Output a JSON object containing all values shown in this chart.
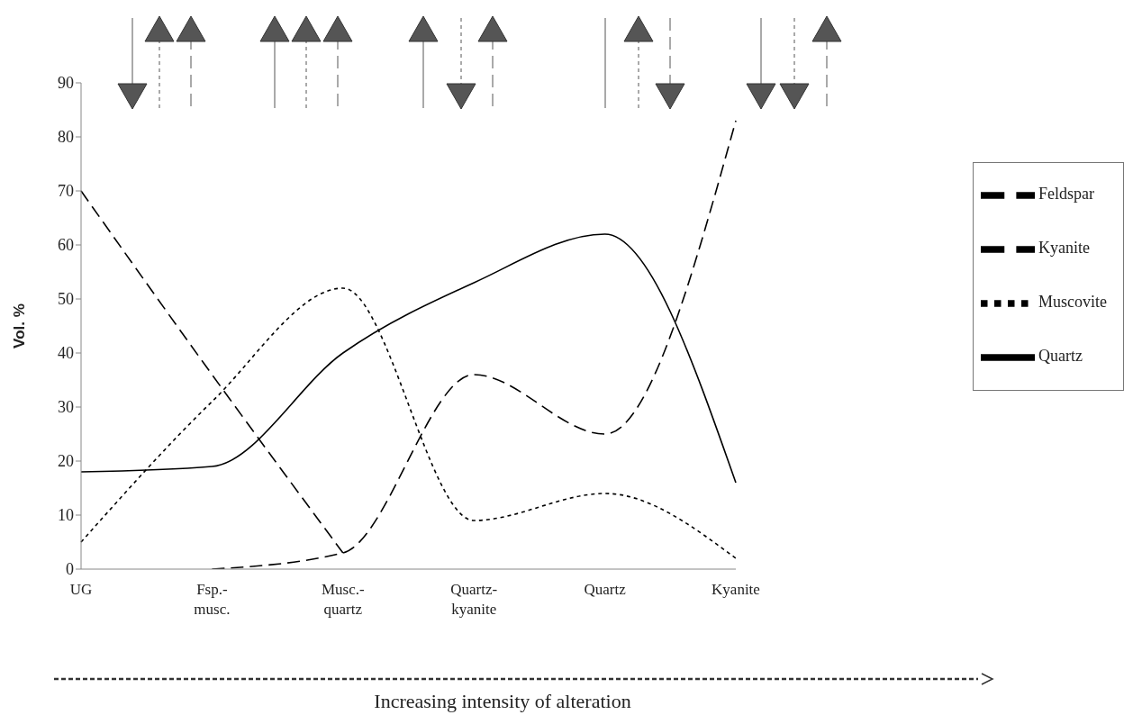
{
  "chart_data": {
    "type": "line",
    "xlabel": "Increasing intensity of alteration",
    "ylabel": "Vol. %",
    "categories": [
      "UG",
      "Fsp.-musc.",
      "Musc.-quartz",
      "Quartz-kyanite",
      "Quartz",
      "Kyanite"
    ],
    "series": [
      {
        "name": "Quartz",
        "color": "#000000",
        "line_style": "solid",
        "values": [
          18,
          19,
          40,
          53,
          62,
          16
        ]
      },
      {
        "name": "Feldspar",
        "color": "#000000",
        "line_style": "dashed",
        "values": [
          70,
          36,
          3,
          null,
          null,
          null
        ]
      },
      {
        "name": "Muscovite",
        "color": "#000000",
        "line_style": "dotted",
        "values": [
          5,
          31,
          52,
          9,
          14,
          2
        ]
      },
      {
        "name": "Kyanite",
        "color": "#000000",
        "line_style": "dashed",
        "values": [
          null,
          0,
          3,
          36,
          25,
          83
        ]
      }
    ],
    "ylim": [
      0,
      90
    ],
    "yticks": [
      0,
      10,
      20,
      30,
      40,
      50,
      60,
      70,
      80,
      90
    ],
    "grid": false,
    "legend": "right",
    "marker": "none"
  }
}
